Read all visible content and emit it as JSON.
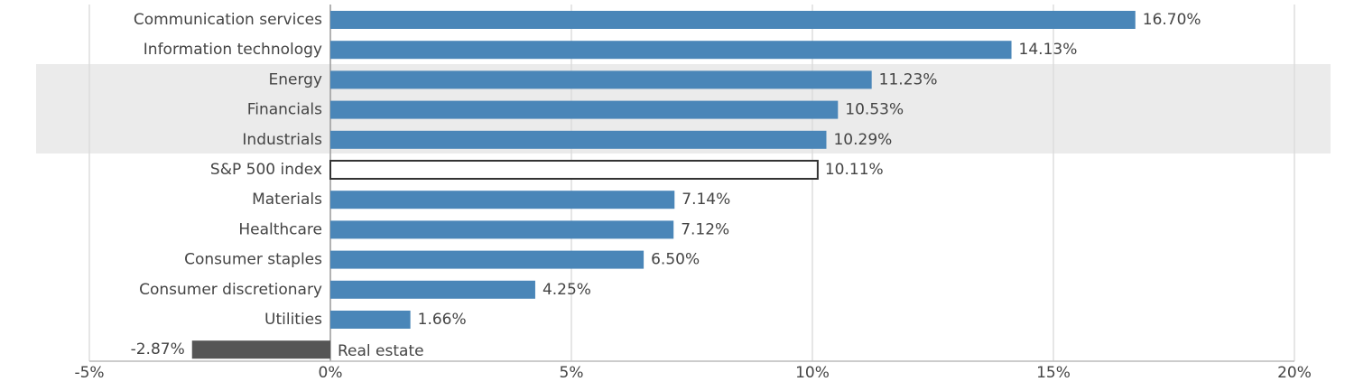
{
  "chart_data": {
    "type": "hbar",
    "categories": [
      "Communication services",
      "Information technology",
      "Energy",
      "Financials",
      "Industrials",
      "S&P 500 index",
      "Materials",
      "Healthcare",
      "Consumer staples",
      "Consumer discretionary",
      "Utilities",
      "Real estate"
    ],
    "values": [
      16.7,
      14.13,
      11.23,
      10.53,
      10.29,
      10.11,
      7.14,
      7.12,
      6.5,
      4.25,
      1.66,
      -2.87
    ],
    "value_labels": [
      "16.70%",
      "14.13%",
      "11.23%",
      "10.53%",
      "10.29%",
      "10.11%",
      "7.14%",
      "7.12%",
      "6.50%",
      "4.25%",
      "1.66%",
      "-2.87%"
    ],
    "colors": [
      "#4a86b8",
      "#4a86b8",
      "#4a86b8",
      "#4a86b8",
      "#4a86b8",
      "#ffffff",
      "#4a86b8",
      "#4a86b8",
      "#4a86b8",
      "#4a86b8",
      "#4a86b8",
      "#555555"
    ],
    "xlim": [
      -5,
      20
    ],
    "xticks": [
      {
        "value": -5,
        "label": "-5%"
      },
      {
        "value": 0,
        "label": "0%"
      },
      {
        "value": 5,
        "label": "5%"
      },
      {
        "value": 10,
        "label": "10%"
      },
      {
        "value": 15,
        "label": "15%"
      },
      {
        "value": 20,
        "label": "20%"
      }
    ],
    "grid": true
  }
}
